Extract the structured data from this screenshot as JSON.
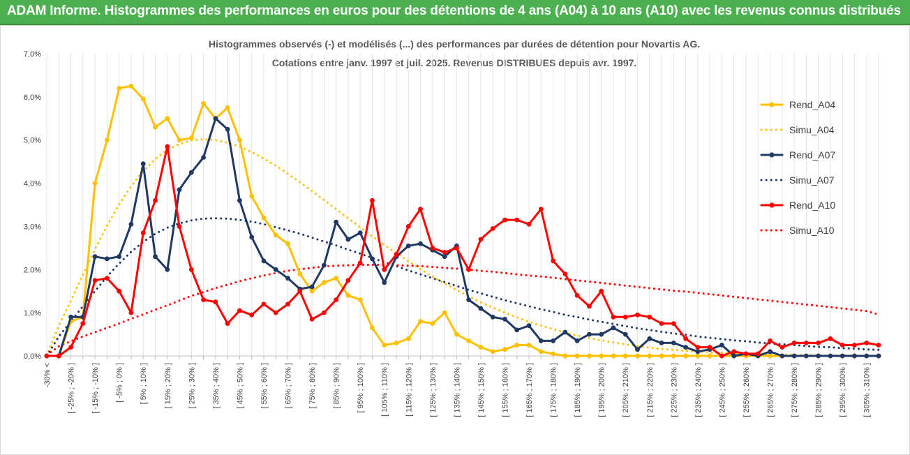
{
  "banner": {
    "title": "ADAM Informe. Histogrammes des performances en euros pour des détentions de 4 ans (A04) à 10 ans (A10) avec les revenus connus distribués"
  },
  "chart_data": {
    "type": "line",
    "title": "Histogrammes observés (-)  et modélisés (...) des performances par durées de détention pour Novartis AG.",
    "subtitle": "Cotations entre janv. 1997 et juil. 2025. Revenus DISTRIBUES depuis avr. 1997.",
    "xlabel": "",
    "ylabel": "",
    "ylim": [
      0,
      7
    ],
    "y_ticks": [
      "0,0%",
      "1,0%",
      "2,0%",
      "3,0%",
      "4,0%",
      "5,0%",
      "6,0%",
      "7,0%"
    ],
    "grid": "vertical",
    "legend_position": "right",
    "x_labels": [
      "-30% <",
      "[ -25% ; -20% ]",
      "[ -15% ; -10% ]",
      "[ -5% ; 0% ]",
      "[ 5% ; 10% ]",
      "[ 15% ; 20% ]",
      "[ 25% ; 30% ]",
      "[ 35% ; 40% ]",
      "[ 45% ; 50% ]",
      "[ 55% ; 60% ]",
      "[ 65% ; 70% ]",
      "[ 75% ; 80% ]",
      "[ 85% ; 90% ]",
      "[ 95% ; 100% ]",
      "[ 105% ; 110% ]",
      "[ 115% ; 120% ]",
      "[ 125% ; 130% ]",
      "[ 135% ; 140% ]",
      "[ 145% ; 150% ]",
      "[ 155% ; 160% ]",
      "[ 165% ; 170% ]",
      "[ 175% ; 180% ]",
      "[ 185% ; 190% ]",
      "[ 195% ; 200% ]",
      "[ 205% ; 210% ]",
      "[ 215% ; 220% ]",
      "[ 225% ; 230% ]",
      "[ 235% ; 240% ]",
      "[ 245% ; 250% ]",
      "[ 255% ; 260% ]",
      "[ 265% ; 270% ]",
      "[ 275% ; 280% ]",
      "[ 285% ; 290% ]",
      "[ 295% ; 300% ]",
      "[ 305% ; 310% ]"
    ],
    "x_start": -30,
    "x_step": 5,
    "series": [
      {
        "name": "Rend_A04",
        "color": "#ffc000",
        "style": "solid",
        "values": [
          0,
          0,
          0.8,
          0.9,
          4,
          5,
          6.2,
          6.25,
          5.95,
          5.3,
          5.5,
          5,
          5.05,
          5.85,
          5.5,
          5.75,
          5,
          3.7,
          3.2,
          2.8,
          2.6,
          1.9,
          1.5,
          1.7,
          1.8,
          1.4,
          1.3,
          0.65,
          0.25,
          0.3,
          0.4,
          0.8,
          0.75,
          1,
          0.5,
          0.35,
          0.2,
          0.1,
          0.15,
          0.25,
          0.25,
          0.1,
          0.05,
          0,
          0,
          0,
          0,
          0,
          0,
          0,
          0,
          0,
          0,
          0,
          0,
          0,
          0,
          0,
          0,
          0,
          0,
          0,
          0,
          0,
          0,
          0,
          0,
          0,
          0,
          0
        ]
      },
      {
        "name": "Simu_A04",
        "color": "#ffc000",
        "style": "dotted",
        "values": [
          0,
          0.7,
          1.28,
          1.88,
          2.47,
          3.02,
          3.51,
          3.93,
          4.28,
          4.56,
          4.77,
          4.91,
          4.99,
          5.02,
          5,
          4.94,
          4.85,
          4.72,
          4.57,
          4.41,
          4.22,
          4.02,
          3.82,
          3.61,
          3.4,
          3.19,
          2.98,
          2.77,
          2.57,
          2.38,
          2.19,
          2.01,
          1.84,
          1.68,
          1.53,
          1.38,
          1.24,
          1.12,
          1,
          0.89,
          0.79,
          0.7,
          0.62,
          0.54,
          0.47,
          0.41,
          0.36,
          0.31,
          0.27,
          0.23,
          0.19,
          0.16,
          0.14,
          0.12,
          0.1,
          0.08,
          0.07,
          0.06,
          0.05,
          0.04,
          0.03,
          0.03,
          0.02,
          0.02,
          0.01,
          0.01,
          0.01,
          0.01,
          0,
          0
        ]
      },
      {
        "name": "Rend_A07",
        "color": "#1f3864",
        "style": "solid",
        "values": [
          0,
          0,
          0.9,
          0.9,
          2.3,
          2.25,
          2.3,
          3.05,
          4.45,
          2.3,
          2,
          3.85,
          4.25,
          4.6,
          5.5,
          5.25,
          3.6,
          2.75,
          2.2,
          2,
          1.8,
          1.55,
          1.6,
          2.1,
          3.1,
          2.7,
          2.85,
          2.25,
          1.7,
          2.3,
          2.55,
          2.6,
          2.45,
          2.3,
          2.55,
          1.3,
          1.1,
          0.9,
          0.85,
          0.6,
          0.7,
          0.35,
          0.35,
          0.55,
          0.35,
          0.5,
          0.5,
          0.65,
          0.5,
          0.15,
          0.4,
          0.3,
          0.3,
          0.2,
          0.1,
          0.15,
          0.25,
          0,
          0.05,
          0,
          0.1,
          0,
          0,
          0,
          0,
          0,
          0,
          0,
          0,
          0
        ]
      },
      {
        "name": "Simu_A07",
        "color": "#1f3864",
        "style": "dotted",
        "values": [
          0,
          0.45,
          0.8,
          1.15,
          1.5,
          1.84,
          2.14,
          2.41,
          2.64,
          2.83,
          2.97,
          3.07,
          3.14,
          3.18,
          3.19,
          3.18,
          3.15,
          3.11,
          3.05,
          2.98,
          2.91,
          2.83,
          2.74,
          2.65,
          2.56,
          2.46,
          2.37,
          2.27,
          2.17,
          2.08,
          1.98,
          1.89,
          1.8,
          1.71,
          1.62,
          1.53,
          1.45,
          1.37,
          1.29,
          1.22,
          1.15,
          1.08,
          1.02,
          0.95,
          0.9,
          0.84,
          0.79,
          0.74,
          0.69,
          0.64,
          0.6,
          0.56,
          0.52,
          0.49,
          0.45,
          0.42,
          0.39,
          0.36,
          0.34,
          0.31,
          0.29,
          0.27,
          0.25,
          0.23,
          0.21,
          0.2,
          0.18,
          0.17,
          0.15,
          0.14
        ]
      },
      {
        "name": "Rend_A10",
        "color": "#ff0000",
        "style": "solid",
        "values": [
          0,
          0,
          0.2,
          0.75,
          1.75,
          1.8,
          1.5,
          1,
          2.85,
          3.6,
          4.85,
          3,
          2,
          1.3,
          1.25,
          0.75,
          1.05,
          0.95,
          1.2,
          1,
          1.2,
          1.5,
          0.85,
          1,
          1.3,
          1.75,
          2.15,
          3.6,
          2,
          2.35,
          3,
          3.4,
          2.5,
          2.4,
          2.5,
          2,
          2.7,
          2.95,
          3.15,
          3.15,
          3.05,
          3.4,
          2.2,
          1.9,
          1.4,
          1.15,
          1.5,
          0.9,
          0.9,
          0.95,
          0.9,
          0.75,
          0.75,
          0.4,
          0.2,
          0.2,
          0,
          0.1,
          0.05,
          0.05,
          0.35,
          0.2,
          0.3,
          0.3,
          0.3,
          0.4,
          0.25,
          0.25,
          0.3,
          0.25
        ]
      },
      {
        "name": "Simu_A10",
        "color": "#ff0000",
        "style": "dotted",
        "values": [
          0.02,
          0.22,
          0.34,
          0.45,
          0.55,
          0.65,
          0.75,
          0.86,
          0.96,
          1.07,
          1.17,
          1.28,
          1.39,
          1.48,
          1.57,
          1.65,
          1.73,
          1.8,
          1.86,
          1.92,
          1.97,
          2.01,
          2.04,
          2.07,
          2.09,
          2.1,
          2.11,
          2.11,
          2.11,
          2.1,
          2.09,
          2.08,
          2.06,
          2.04,
          2.02,
          2,
          1.97,
          1.95,
          1.92,
          1.89,
          1.86,
          1.84,
          1.81,
          1.78,
          1.75,
          1.72,
          1.69,
          1.66,
          1.63,
          1.6,
          1.57,
          1.54,
          1.51,
          1.49,
          1.46,
          1.43,
          1.4,
          1.37,
          1.34,
          1.31,
          1.28,
          1.25,
          1.22,
          1.19,
          1.16,
          1.13,
          1.1,
          1.07,
          1.04,
          0.96
        ]
      }
    ]
  }
}
